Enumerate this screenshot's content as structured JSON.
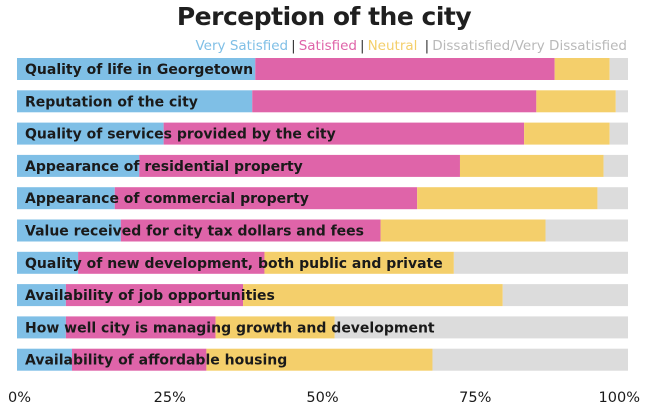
{
  "chart_data": {
    "type": "bar",
    "orientation": "horizontal",
    "stacked": true,
    "title": "Perception of the city",
    "xlabel": "",
    "ylabel": "",
    "xlim": [
      0,
      100
    ],
    "x_ticks": [
      "0%",
      "25%",
      "50%",
      "75%",
      "100%"
    ],
    "grid": false,
    "legend_position": "top-right",
    "categories": [
      "Quality of life in Georgetown",
      "Reputation of the city",
      "Quality of services provided by the city",
      "Appearance of residential property",
      "Appearance of commercial property",
      "Value received for city tax dollars and fees",
      "Quality of new development, both public and private",
      "Availability of job opportunities",
      "How well city is managing growth and development",
      "Availability of affordable housing"
    ],
    "series": [
      {
        "name": "Very Satisfied",
        "color": "#7fbfe6",
        "values": [
          39,
          38.5,
          24,
          20,
          16,
          17,
          10,
          8,
          8,
          9
        ]
      },
      {
        "name": "Satisfied",
        "color": "#df64a9",
        "values": [
          49,
          46.5,
          59,
          52.5,
          49.5,
          42.5,
          30.5,
          29,
          24.5,
          22
        ]
      },
      {
        "name": "Neutral",
        "color": "#f4cf6b",
        "values": [
          9,
          13,
          14,
          23.5,
          29.5,
          27,
          31,
          42.5,
          19.5,
          37
        ]
      },
      {
        "name": "Dissatisfied/Very Dissatisfied",
        "color": "#dcdcdc",
        "values": [
          3,
          2,
          3,
          4,
          5,
          13.5,
          28.5,
          20.5,
          48,
          32
        ]
      }
    ]
  }
}
